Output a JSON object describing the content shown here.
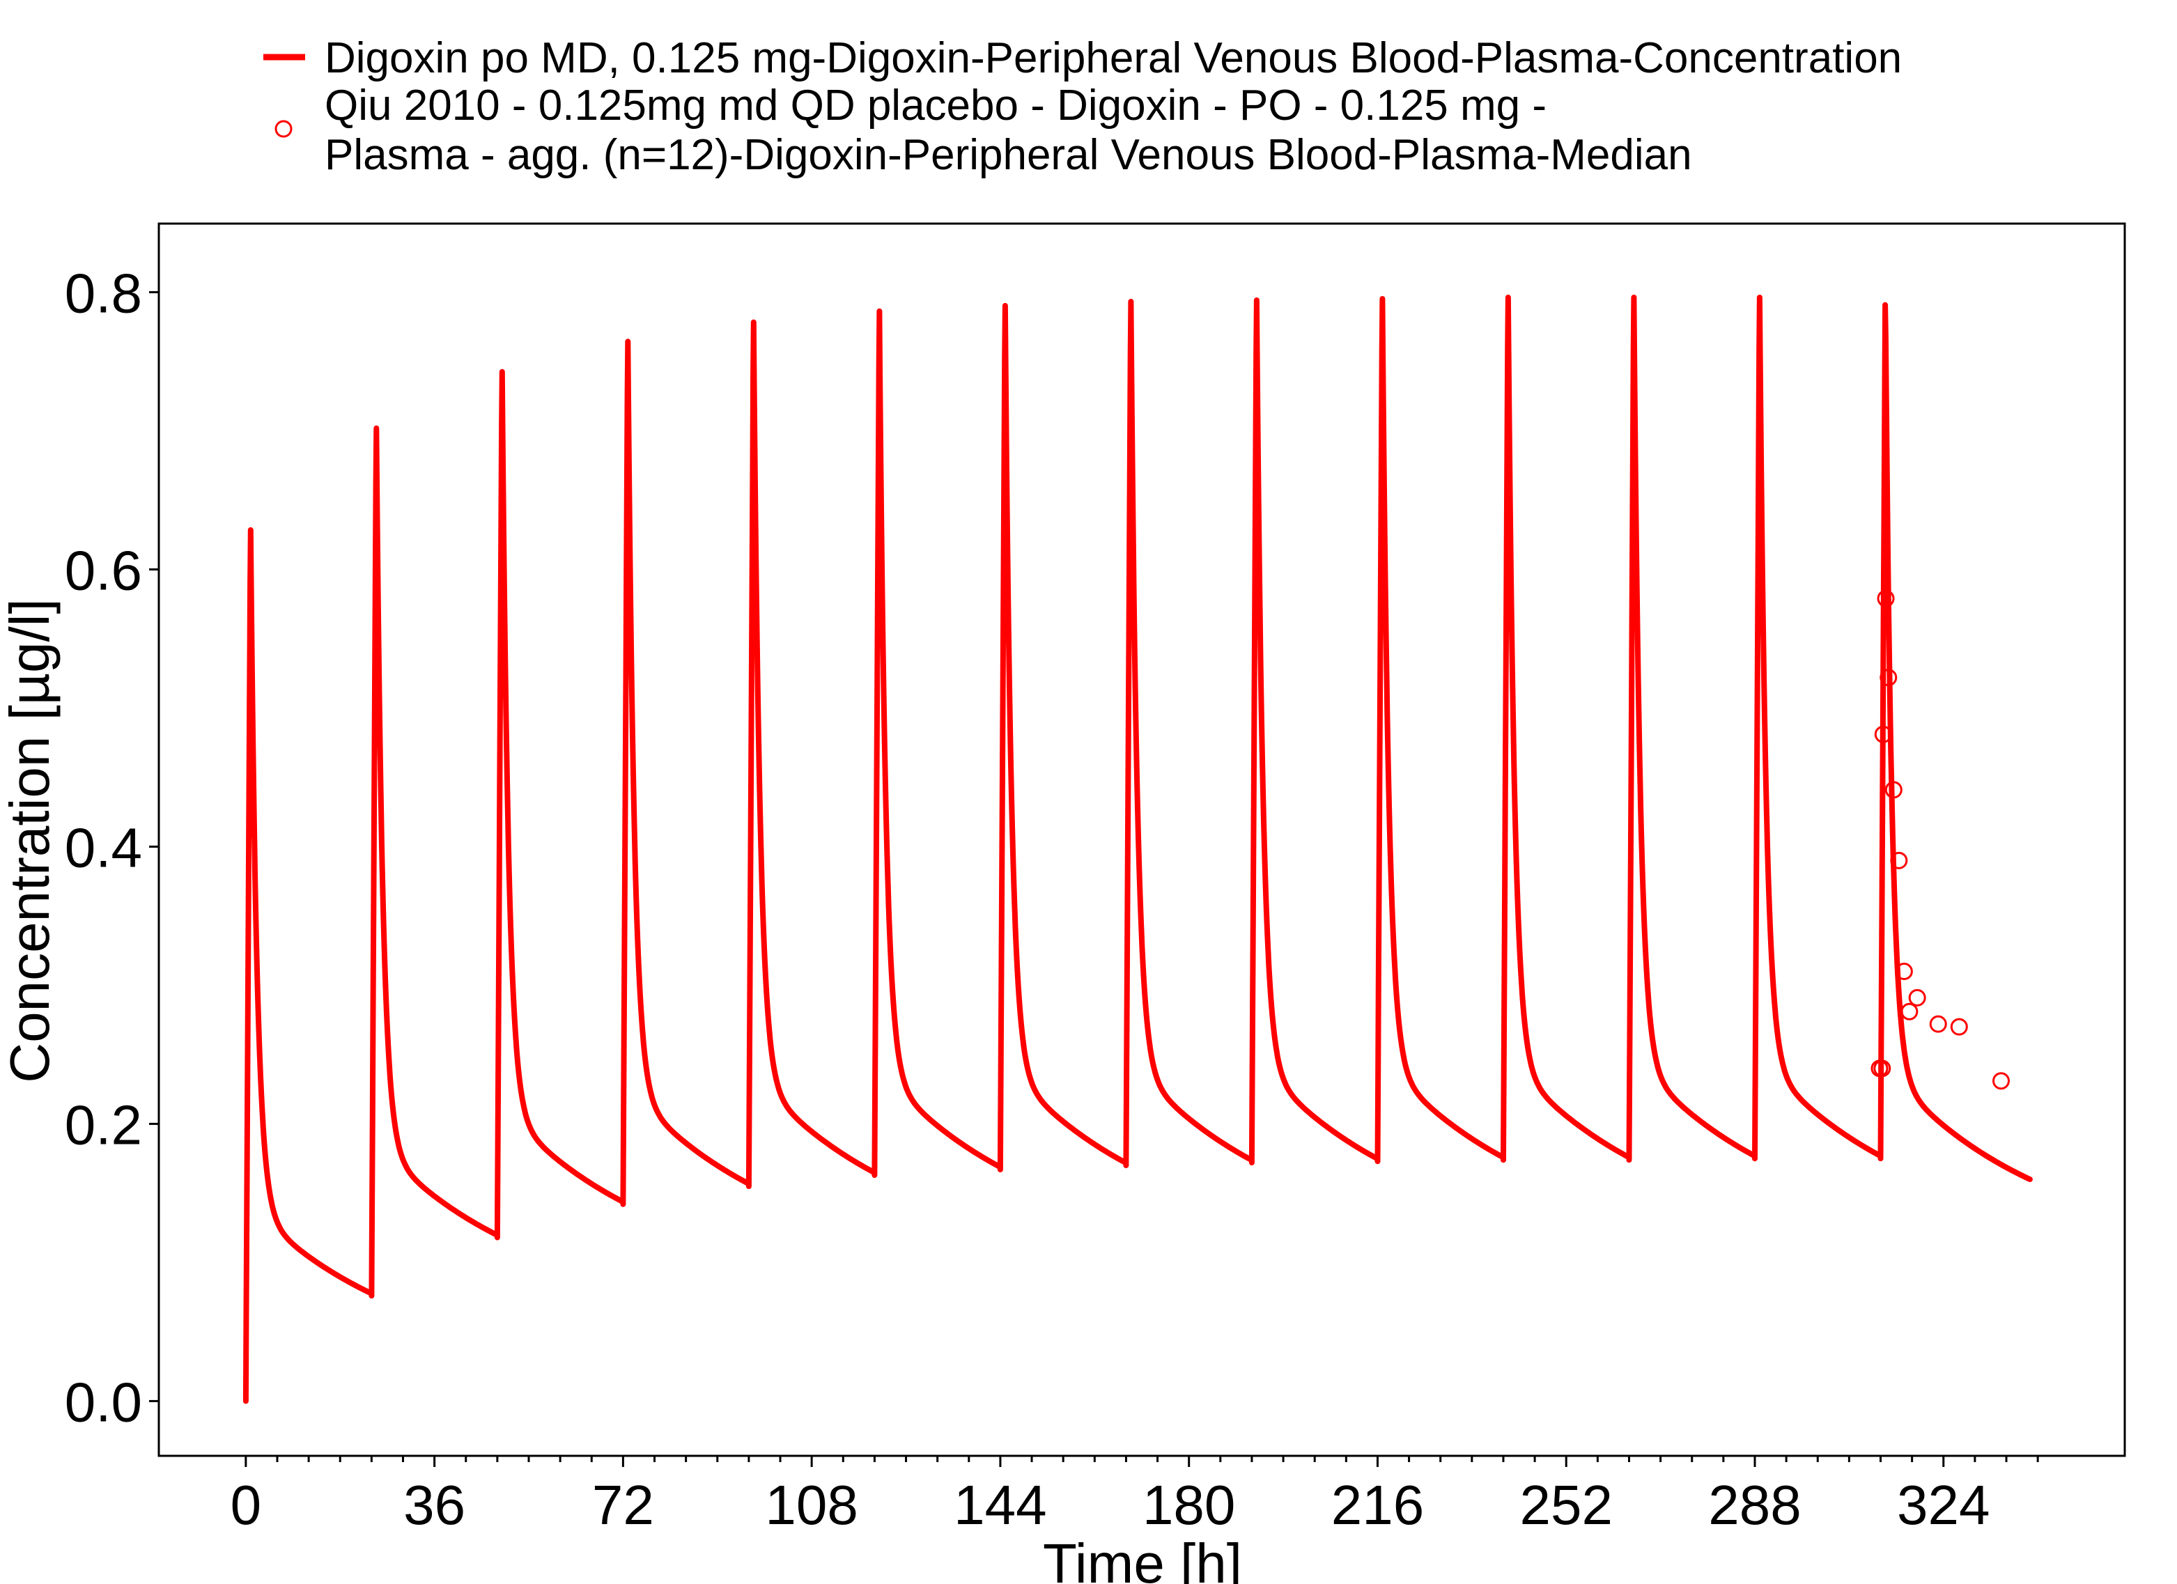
{
  "chart_data": {
    "type": "line",
    "title": "",
    "xlabel": "Time [h]",
    "ylabel": "Concentration [µg/l]",
    "xlim": [
      -16.6,
      358.6
    ],
    "ylim": [
      -0.0395,
      0.8495
    ],
    "x_ticks": [
      0,
      36,
      72,
      108,
      144,
      180,
      216,
      252,
      288,
      324
    ],
    "x_ticks_minor_step": 6,
    "y_ticks": [
      0.0,
      0.2,
      0.4,
      0.6,
      0.8
    ],
    "y_tick_labels": [
      "0.0",
      "0.2",
      "0.4",
      "0.6",
      "0.8"
    ],
    "grid": false,
    "legend_position": "top",
    "series": [
      {
        "name": "Digoxin po MD, 0.125 mg-Digoxin-Peripheral Venous Blood-Plasma-Concentration",
        "kind": "line",
        "color": "#ff0000",
        "dose_interval_h": 24,
        "end_time_h": 340.5,
        "peaks": [
          0.638,
          0.712,
          0.753,
          0.775,
          0.789,
          0.797,
          0.801,
          0.804,
          0.805,
          0.806,
          0.807,
          0.807,
          0.807,
          0.807
        ],
        "troughs": [
          0.076,
          0.118,
          0.142,
          0.155,
          0.163,
          0.167,
          0.17,
          0.172,
          0.173,
          0.174,
          0.174,
          0.175,
          0.175
        ],
        "final_value": 0.16
      },
      {
        "name": "Qiu 2010 - 0.125mg md QD placebo - Digoxin - PO - 0.125 mg - Plasma - agg. (n=12)-Digoxin-Peripheral Venous Blood-Plasma-Median",
        "legend_lines": [
          "Qiu 2010 - 0.125mg md QD placebo - Digoxin - PO - 0.125 mg -",
          "Plasma - agg. (n=12)-Digoxin-Peripheral Venous Blood-Plasma-Median"
        ],
        "kind": "scatter",
        "marker": "open-circle",
        "color": "#ff0000",
        "points": [
          [
            311.8,
            0.24
          ],
          [
            312.3,
            0.24
          ],
          [
            312.5,
            0.481
          ],
          [
            313.0,
            0.579
          ],
          [
            313.5,
            0.522
          ],
          [
            314.5,
            0.441
          ],
          [
            315.5,
            0.39
          ],
          [
            316.5,
            0.31
          ],
          [
            317.5,
            0.281
          ],
          [
            319.0,
            0.291
          ],
          [
            323.0,
            0.272
          ],
          [
            327.0,
            0.27
          ],
          [
            335.0,
            0.231
          ]
        ]
      }
    ]
  }
}
